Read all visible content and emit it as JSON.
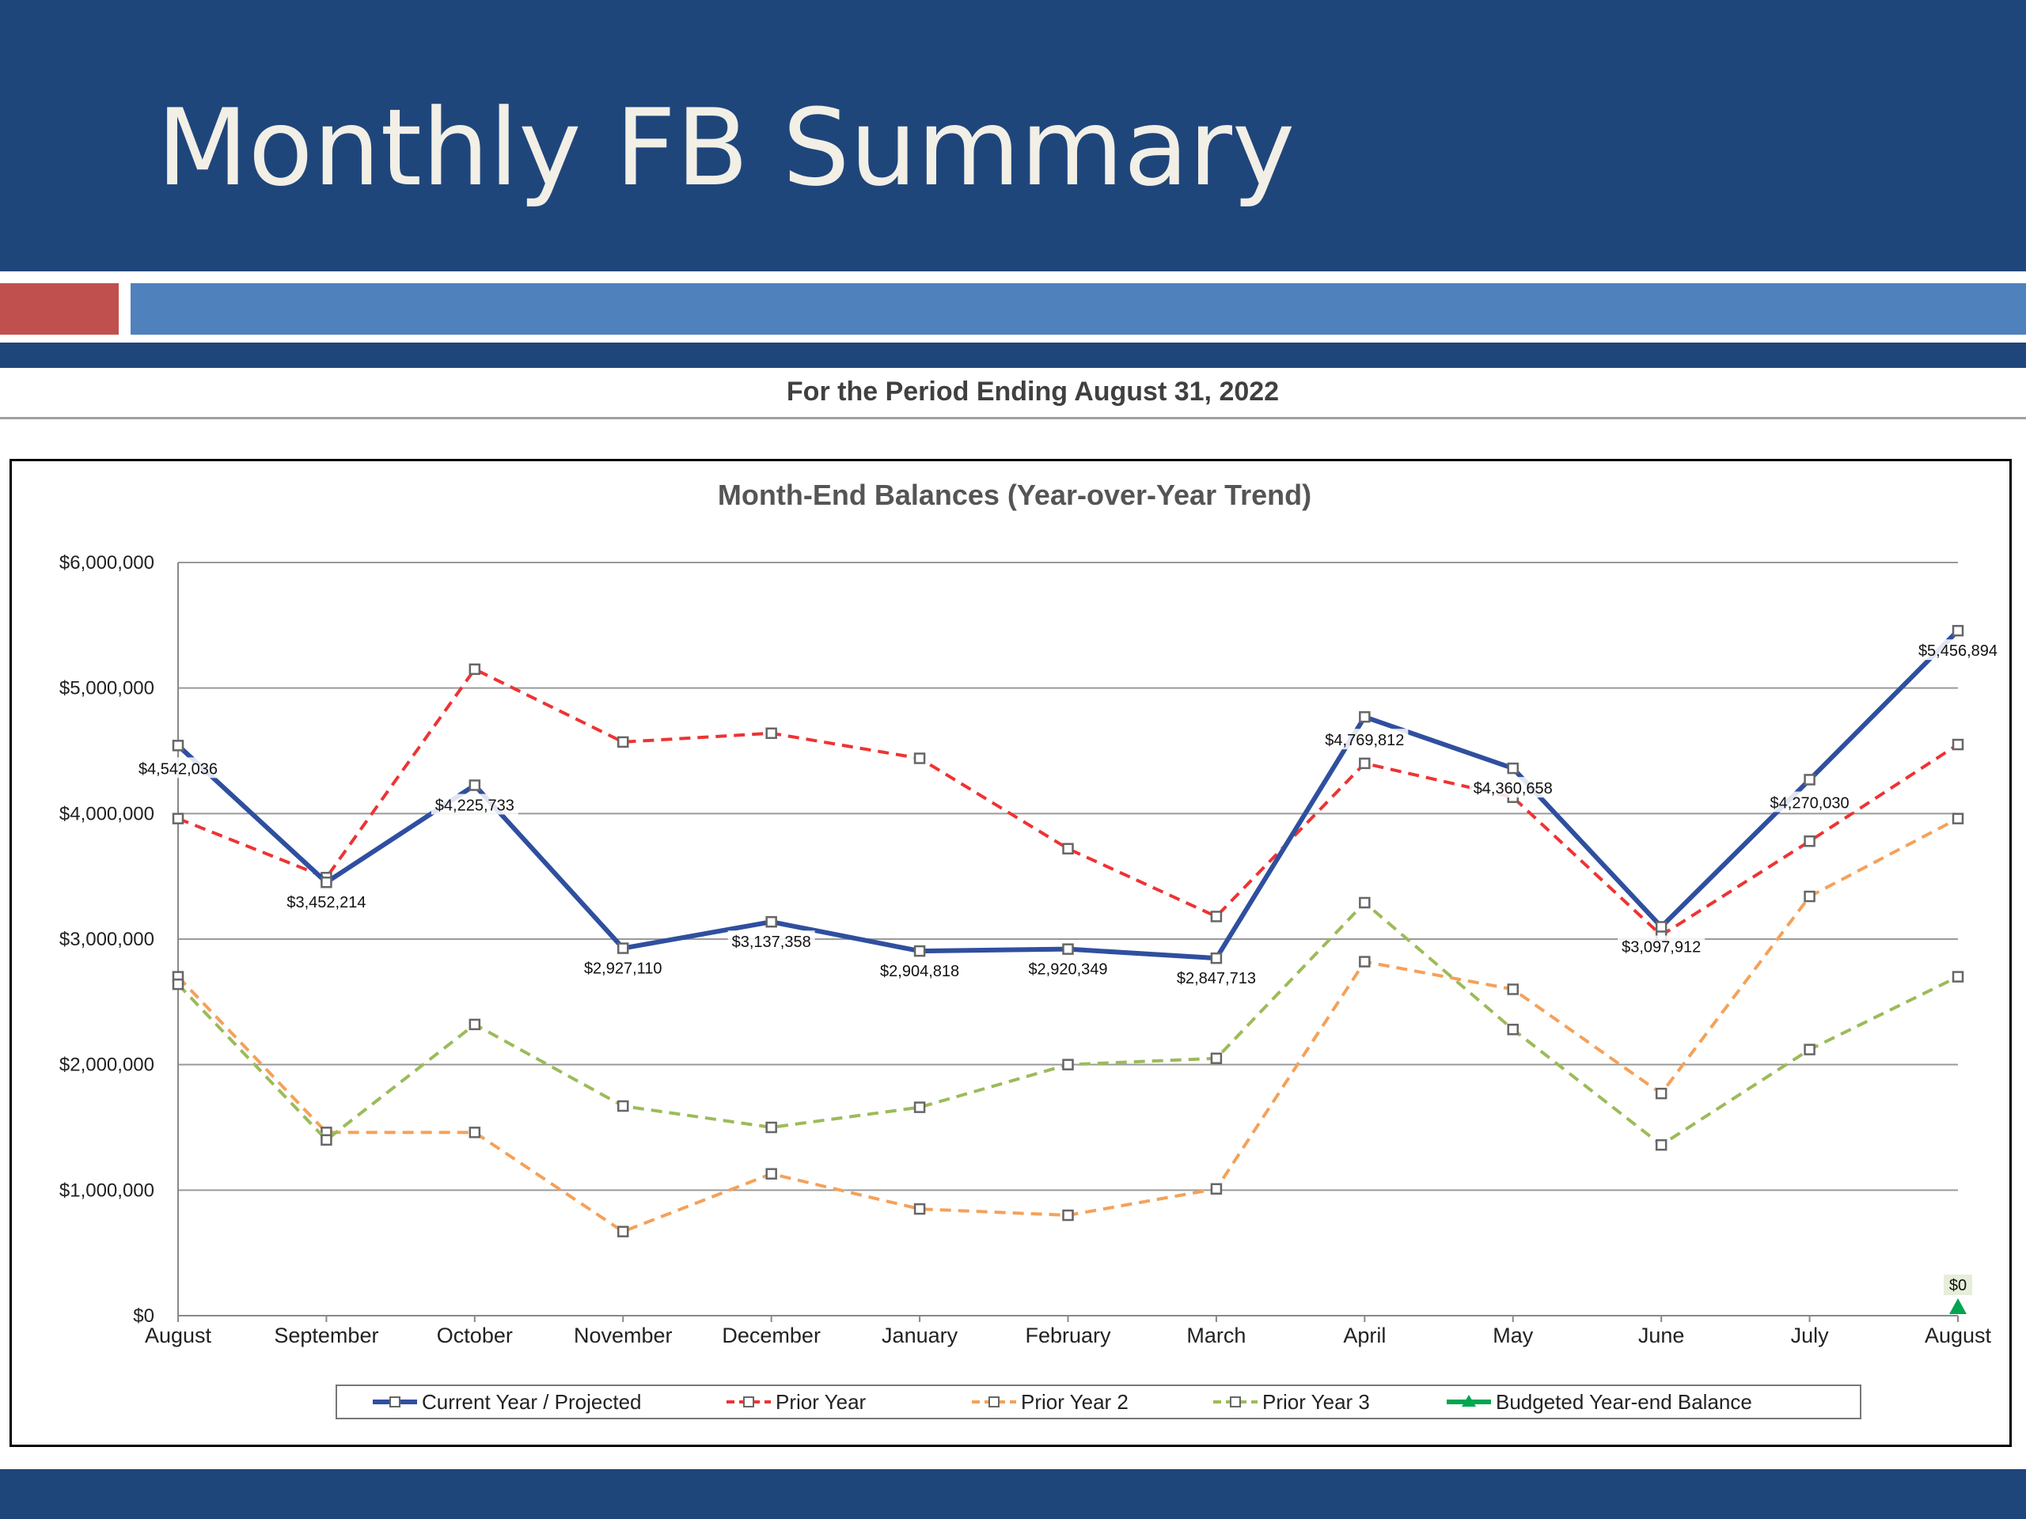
{
  "slide": {
    "title": "Monthly FB Summary",
    "subtitle": "For the Period Ending August 31, 2022"
  },
  "colors": {
    "banner": "#1f467b",
    "accent_red": "#c0504d",
    "accent_blue": "#4f81bd"
  },
  "chart_data": {
    "type": "line",
    "title": "Month-End Balances (Year-over-Year Trend)",
    "categories": [
      "August",
      "September",
      "October",
      "November",
      "December",
      "January",
      "February",
      "March",
      "April",
      "May",
      "June",
      "July",
      "August"
    ],
    "ylim": [
      0,
      6000000
    ],
    "yticks": [
      {
        "value": 0,
        "label": "$0"
      },
      {
        "value": 1000000,
        "label": "$1,000,000"
      },
      {
        "value": 2000000,
        "label": "$2,000,000"
      },
      {
        "value": 3000000,
        "label": "$3,000,000"
      },
      {
        "value": 4000000,
        "label": "$4,000,000"
      },
      {
        "value": 5000000,
        "label": "$5,000,000"
      },
      {
        "value": 6000000,
        "label": "$6,000,000"
      }
    ],
    "grid": true,
    "legend_position": "bottom",
    "series": [
      {
        "name": "Current Year / Projected",
        "color": "#2f4f9f",
        "style": "solid",
        "marker": "square",
        "values": [
          4542036,
          3452214,
          4225733,
          2927110,
          3137358,
          2904818,
          2920349,
          2847713,
          4769812,
          4360658,
          3097912,
          4270030,
          5456894
        ],
        "labels": [
          "$4,542,036",
          "$3,452,214",
          "$4,225,733",
          "$2,927,110",
          "$3,137,358",
          "$2,904,818",
          "$2,920,349",
          "$2,847,713",
          "$4,769,812",
          "$4,360,658",
          "$3,097,912",
          "$4,270,030",
          "$5,456,894"
        ]
      },
      {
        "name": "Prior Year",
        "color": "#ee3333",
        "style": "dashed",
        "marker": "square",
        "values": [
          3960000,
          3490000,
          5150000,
          4570000,
          4640000,
          4440000,
          3720000,
          3180000,
          4400000,
          4130000,
          3030000,
          3780000,
          4550000
        ]
      },
      {
        "name": "Prior Year 2",
        "color": "#f4a15a",
        "style": "dashed",
        "marker": "square",
        "values": [
          2700000,
          1460000,
          1460000,
          670000,
          1130000,
          850000,
          800000,
          1010000,
          2820000,
          2600000,
          1770000,
          3340000,
          3960000
        ]
      },
      {
        "name": "Prior Year 3",
        "color": "#9bbb59",
        "style": "dashed",
        "marker": "square",
        "values": [
          2640000,
          1400000,
          2320000,
          1670000,
          1500000,
          1660000,
          2000000,
          2050000,
          3290000,
          2280000,
          1360000,
          2120000,
          2700000
        ]
      },
      {
        "name": "Budgeted Year-end Balance",
        "color": "#00a651",
        "style": "solid",
        "marker": "triangle",
        "points": [
          {
            "index": 12,
            "value": 0,
            "label": "$0"
          }
        ]
      }
    ]
  }
}
